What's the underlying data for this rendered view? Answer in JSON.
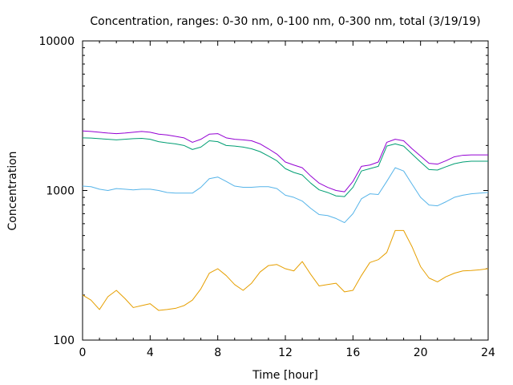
{
  "chart_data": {
    "type": "line",
    "title": "Concentration, ranges: 0-30 nm, 0-100 nm, 0-300 nm, total (3/19/19)",
    "xlabel": "Time [hour]",
    "ylabel": "Concentration",
    "xlim": [
      0,
      24
    ],
    "ylim": [
      100,
      10000
    ],
    "yscale": "log",
    "grid": false,
    "legend": "none",
    "x_ticks": [
      0,
      4,
      8,
      12,
      16,
      20,
      24
    ],
    "x_tick_labels": [
      "0",
      "4",
      "8",
      "12",
      "16",
      "20",
      "24"
    ],
    "y_ticks": [
      100,
      1000,
      10000
    ],
    "y_tick_labels": [
      "100",
      "1000",
      "10000"
    ],
    "x": [
      0,
      0.5,
      1,
      1.5,
      2,
      2.5,
      3,
      3.5,
      4,
      4.5,
      5,
      5.5,
      6,
      6.5,
      7,
      7.5,
      8,
      8.5,
      9,
      9.5,
      10,
      10.5,
      11,
      11.5,
      12,
      12.5,
      13,
      13.5,
      14,
      14.5,
      15,
      15.5,
      16,
      16.5,
      17,
      17.5,
      18,
      18.5,
      19,
      19.5,
      20,
      20.5,
      21,
      21.5,
      22,
      22.5,
      23,
      23.5,
      24
    ],
    "series": [
      {
        "color": "#9400d3",
        "values": [
          2500,
          2480,
          2450,
          2420,
          2400,
          2420,
          2450,
          2480,
          2450,
          2380,
          2350,
          2300,
          2250,
          2100,
          2200,
          2380,
          2400,
          2250,
          2200,
          2180,
          2150,
          2050,
          1900,
          1750,
          1550,
          1480,
          1420,
          1250,
          1120,
          1050,
          1000,
          980,
          1150,
          1450,
          1480,
          1550,
          2100,
          2200,
          2150,
          1900,
          1700,
          1520,
          1500,
          1580,
          1680,
          1720,
          1730,
          1730,
          1730
        ]
      },
      {
        "color": "#009e73",
        "values": [
          2250,
          2240,
          2220,
          2200,
          2180,
          2200,
          2220,
          2230,
          2200,
          2120,
          2080,
          2050,
          2000,
          1880,
          1950,
          2150,
          2120,
          2000,
          1980,
          1950,
          1900,
          1820,
          1700,
          1580,
          1400,
          1320,
          1270,
          1120,
          1010,
          970,
          920,
          910,
          1050,
          1350,
          1400,
          1450,
          1980,
          2050,
          1980,
          1750,
          1550,
          1380,
          1370,
          1440,
          1510,
          1550,
          1570,
          1570,
          1570
        ]
      },
      {
        "color": "#56b4e9",
        "values": [
          1070,
          1060,
          1020,
          1000,
          1030,
          1020,
          1010,
          1020,
          1020,
          1000,
          970,
          960,
          960,
          960,
          1050,
          1200,
          1230,
          1150,
          1070,
          1050,
          1050,
          1060,
          1060,
          1030,
          930,
          900,
          850,
          760,
          690,
          680,
          650,
          610,
          700,
          880,
          950,
          940,
          1150,
          1420,
          1350,
          1100,
          900,
          800,
          790,
          840,
          900,
          930,
          950,
          960,
          970
        ]
      },
      {
        "color": "#e69f00",
        "values": [
          200,
          185,
          160,
          195,
          215,
          190,
          165,
          170,
          175,
          158,
          160,
          163,
          170,
          185,
          220,
          280,
          300,
          270,
          235,
          215,
          240,
          285,
          315,
          320,
          300,
          290,
          335,
          275,
          230,
          235,
          240,
          210,
          215,
          270,
          330,
          345,
          385,
          540,
          540,
          420,
          310,
          260,
          245,
          265,
          280,
          290,
          292,
          295,
          300
        ]
      }
    ]
  }
}
